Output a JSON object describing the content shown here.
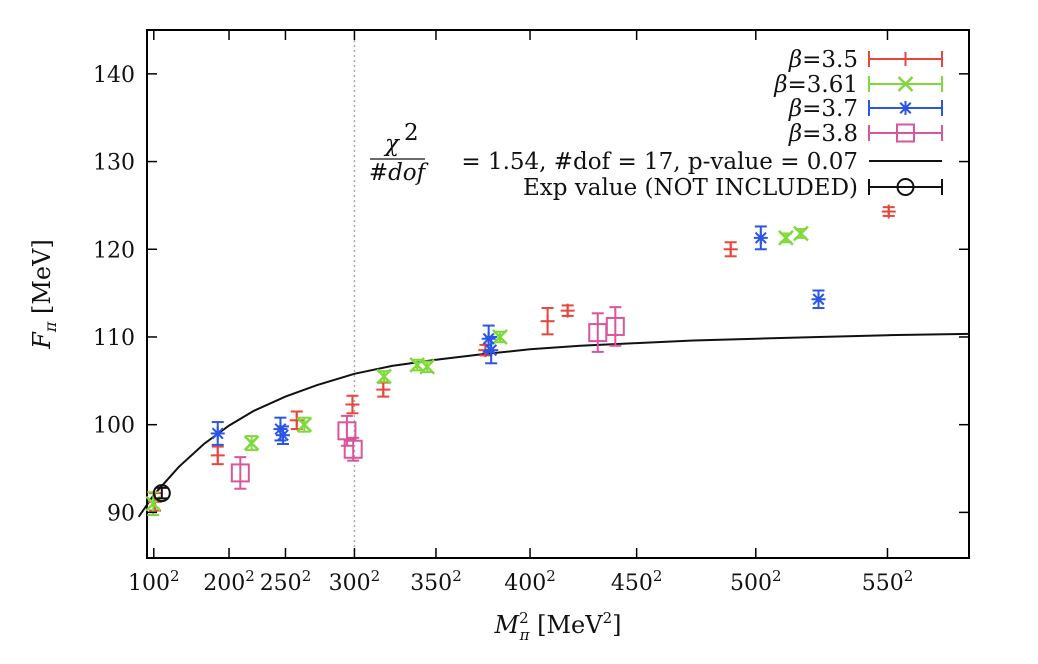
{
  "chart_data": {
    "type": "scatter",
    "xlabel": "M_π^2 [MeV^2]",
    "ylabel": "F_π [MeV]",
    "xlim": [
      7300,
      335000
    ],
    "ylim": [
      84.8,
      145
    ],
    "x_ticks": [
      {
        "value": 10000,
        "base": "100",
        "exp": "2"
      },
      {
        "value": 40000,
        "base": "200",
        "exp": "2"
      },
      {
        "value": 62500,
        "base": "250",
        "exp": "2"
      },
      {
        "value": 90000,
        "base": "300",
        "exp": "2"
      },
      {
        "value": 122500,
        "base": "350",
        "exp": "2"
      },
      {
        "value": 160000,
        "base": "400",
        "exp": "2"
      },
      {
        "value": 202500,
        "base": "450",
        "exp": "2"
      },
      {
        "value": 250000,
        "base": "500",
        "exp": "2"
      },
      {
        "value": 302500,
        "base": "550",
        "exp": "2"
      }
    ],
    "y_ticks": [
      90,
      100,
      110,
      120,
      130,
      140
    ],
    "vline_x": 90000,
    "legend_position": "top-right",
    "series": [
      {
        "name": "β=3.5",
        "color": "#e8453c",
        "marker": "plus",
        "points": [
          {
            "x": 10500,
            "y": 91.2,
            "err": 1.0
          },
          {
            "x": 35500,
            "y": 96.5,
            "err": 1.0
          },
          {
            "x": 67000,
            "y": 100.5,
            "err": 1.0
          },
          {
            "x": 89200,
            "y": 102.3,
            "err": 1.0
          },
          {
            "x": 101500,
            "y": 104.0,
            "err": 0.8
          },
          {
            "x": 142200,
            "y": 108.5,
            "err": 0.6
          },
          {
            "x": 167000,
            "y": 111.8,
            "err": 1.5
          },
          {
            "x": 175000,
            "y": 113.0,
            "err": 0.6
          },
          {
            "x": 240000,
            "y": 120.0,
            "err": 0.8
          },
          {
            "x": 303000,
            "y": 124.3,
            "err": 0.5
          }
        ]
      },
      {
        "name": "β=3.61",
        "color": "#7fd93b",
        "marker": "cross",
        "points": [
          {
            "x": 9800,
            "y": 91.0,
            "err": 1.3
          },
          {
            "x": 49000,
            "y": 97.9,
            "err": 0.8
          },
          {
            "x": 70000,
            "y": 100.0,
            "err": 0.8
          },
          {
            "x": 101800,
            "y": 105.5,
            "err": 0.6
          },
          {
            "x": 115000,
            "y": 106.8,
            "err": 0.6
          },
          {
            "x": 119000,
            "y": 106.6,
            "err": 0.6
          },
          {
            "x": 148000,
            "y": 110.0,
            "err": 0.6
          },
          {
            "x": 262000,
            "y": 121.3,
            "err": 0.5
          },
          {
            "x": 268000,
            "y": 121.8,
            "err": 0.5
          }
        ]
      },
      {
        "name": "β=3.7",
        "color": "#2a55e5",
        "marker": "star",
        "points": [
          {
            "x": 35500,
            "y": 99.0,
            "err": 1.3
          },
          {
            "x": 60500,
            "y": 99.5,
            "err": 1.3
          },
          {
            "x": 61500,
            "y": 98.8,
            "err": 1.0
          },
          {
            "x": 143500,
            "y": 109.8,
            "err": 1.5
          },
          {
            "x": 144500,
            "y": 108.5,
            "err": 1.5
          },
          {
            "x": 252000,
            "y": 121.3,
            "err": 1.3
          },
          {
            "x": 275000,
            "y": 114.3,
            "err": 1.0
          }
        ]
      },
      {
        "name": "β=3.8",
        "color": "#d9559c",
        "marker": "square",
        "points": [
          {
            "x": 44500,
            "y": 94.5,
            "err": 1.8
          },
          {
            "x": 87000,
            "y": 99.3,
            "err": 1.7
          },
          {
            "x": 89500,
            "y": 97.2,
            "err": 1.3
          },
          {
            "x": 187000,
            "y": 110.5,
            "err": 2.2
          },
          {
            "x": 194000,
            "y": 111.2,
            "err": 2.2
          }
        ]
      },
      {
        "name": "Exp value (NOT INCLUDED)",
        "color": "#111111",
        "marker": "circle",
        "points": [
          {
            "x": 13200,
            "y": 92.2,
            "err": 0.6
          }
        ]
      }
    ],
    "fit": {
      "label": "χ²/#dof = 1.54, #dof = 17, p-value = 0.07",
      "label_parts": {
        "chi": "χ",
        "exp": "2",
        "denom": "#dof",
        "rest": "= 1.54, #dof = 17, p-value = 0.07"
      },
      "color": "#111111",
      "curve": [
        [
          4000,
          89.5
        ],
        [
          10000,
          92.0
        ],
        [
          20000,
          95.2
        ],
        [
          30000,
          97.8
        ],
        [
          40000,
          99.9
        ],
        [
          50000,
          101.6
        ],
        [
          62500,
          103.2
        ],
        [
          75000,
          104.5
        ],
        [
          90000,
          105.8
        ],
        [
          105000,
          106.7
        ],
        [
          122500,
          107.4
        ],
        [
          140000,
          108.0
        ],
        [
          160000,
          108.6
        ],
        [
          180000,
          109.0
        ],
        [
          202500,
          109.3
        ],
        [
          225000,
          109.6
        ],
        [
          250000,
          109.8
        ],
        [
          275000,
          110.0
        ],
        [
          302500,
          110.2
        ],
        [
          335000,
          110.35
        ]
      ]
    }
  }
}
